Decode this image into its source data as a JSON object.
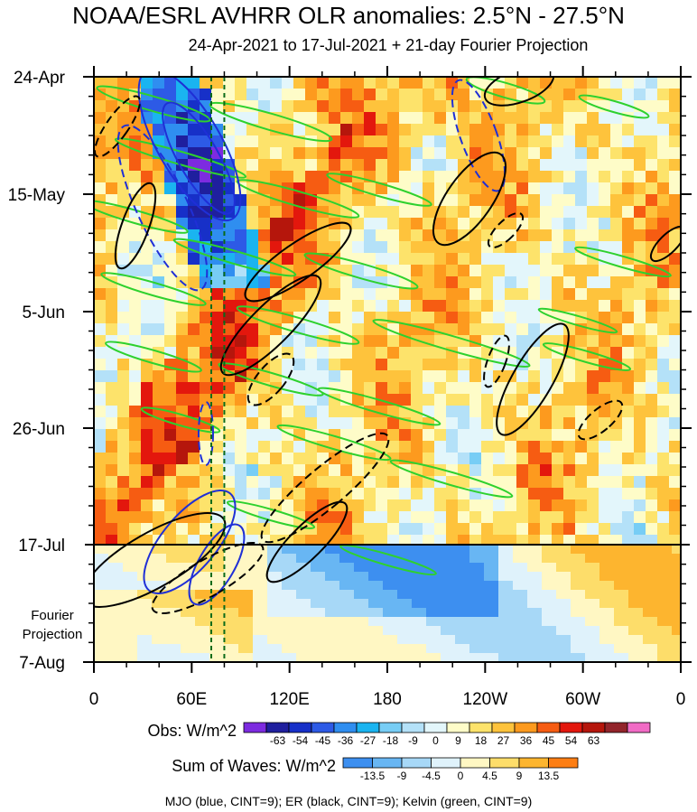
{
  "chart_data": {
    "type": "heatmap",
    "title": "NOAA/ESRL AVHRR OLR anomalies: 2.5°N - 27.5°N",
    "subtitle": "24-Apr-2021 to 17-Jul-2021 + 21-day Fourier Projection",
    "x_ticks": [
      "0",
      "60E",
      "120E",
      "180",
      "120W",
      "60W",
      "0"
    ],
    "y_ticks": [
      "24-Apr",
      "15-May",
      "5-Jun",
      "26-Jun",
      "17-Jul",
      "7-Aug"
    ],
    "projection_label": [
      "Fourier",
      "Projection"
    ],
    "projection_start": "17-Jul",
    "reference_lines_lon": [
      72,
      80
    ],
    "obs_colorbar": {
      "title": "Obs: W/m^2",
      "labels": [
        "-63",
        "-54",
        "-45",
        "-36",
        "-27",
        "-18",
        "-9",
        "0",
        "9",
        "18",
        "27",
        "36",
        "45",
        "54",
        "63"
      ],
      "colors": [
        "#7d2be0",
        "#1f1f9e",
        "#1730c8",
        "#2d5ae6",
        "#2f8ef0",
        "#1ab4f0",
        "#77cdf5",
        "#b4e1f8",
        "#e3f6fb",
        "#fefcc8",
        "#fde36b",
        "#fec33c",
        "#fd9a1e",
        "#f65c12",
        "#e3170d",
        "#b5160c",
        "#92242a",
        "#f16bc5"
      ]
    },
    "waves_colorbar": {
      "title": "Sum of Waves: W/m^2",
      "labels": [
        "-13.5",
        "-9",
        "-4.5",
        "0",
        "4.5",
        "9",
        "13.5"
      ],
      "colors": [
        "#3d8ff0",
        "#68b6f3",
        "#a7d8f7",
        "#dff2fb",
        "#fff7c3",
        "#fddd6a",
        "#fdb52f",
        "#fd7e14"
      ]
    },
    "footer": "MJO (blue, CINT=9); ER (black, CINT=9); Kelvin (green, CINT=9)"
  }
}
